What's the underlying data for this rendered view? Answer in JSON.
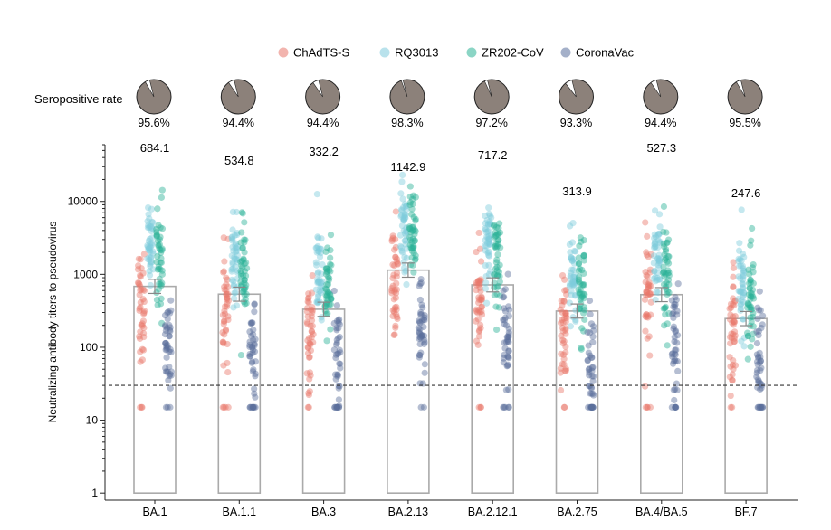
{
  "chart_data": {
    "type": "scatter",
    "subtype": "bar-with-jittered-points",
    "ylabel": "Neutralizing antibody titers to pseudovirus",
    "yscale": "log",
    "ylim": [
      0.8,
      60000
    ],
    "yticks": [
      1,
      10,
      100,
      1000,
      10000
    ],
    "ytick_labels": [
      "1",
      "10",
      "100",
      "1000",
      "10000"
    ],
    "threshold": 30,
    "legend_position": "top-center",
    "categories": [
      "BA.1",
      "BA.1.1",
      "BA.3",
      "BA.2.13",
      "BA.2.12.1",
      "BA.2.75",
      "BA.4/BA.5",
      "BF.7"
    ],
    "gmt_values": [
      684.1,
      534.8,
      332.2,
      1142.9,
      717.2,
      313.9,
      527.3,
      247.6
    ],
    "gmt_labels": [
      "684.1",
      "534.8",
      "332.2",
      "1142.9",
      "717.2",
      "313.9",
      "527.3",
      "247.6"
    ],
    "seropositive_label": "Seropositive rate",
    "seropositive_rates": [
      95.6,
      94.4,
      94.4,
      98.3,
      97.2,
      93.3,
      94.4,
      95.5
    ],
    "seropositive_labels": [
      "95.6%",
      "94.4%",
      "94.4%",
      "98.3%",
      "97.2%",
      "93.3%",
      "94.4%",
      "95.5%"
    ],
    "series": [
      {
        "name": "ChAdTS-S",
        "color": "#e8776b",
        "gmt": [
          420,
          380,
          170,
          900,
          520,
          180,
          460,
          160
        ],
        "spread": [
          0.4,
          0.4,
          0.42,
          0.38,
          0.4,
          0.38,
          0.4,
          0.4
        ]
      },
      {
        "name": "RQ3013",
        "color": "#7fcbdc",
        "gmt": [
          2600,
          2100,
          900,
          3600,
          2500,
          900,
          2000,
          700
        ],
        "spread": [
          0.32,
          0.32,
          0.35,
          0.3,
          0.32,
          0.35,
          0.32,
          0.32
        ]
      },
      {
        "name": "ZR202-CoV",
        "color": "#2bb296",
        "gmt": [
          1600,
          1300,
          600,
          2700,
          1600,
          700,
          1100,
          450
        ],
        "spread": [
          0.36,
          0.36,
          0.36,
          0.32,
          0.34,
          0.36,
          0.36,
          0.36
        ]
      },
      {
        "name": "CoronaVac",
        "color": "#5a6f9c",
        "gmt": [
          120,
          95,
          70,
          180,
          130,
          60,
          120,
          75
        ],
        "spread": [
          0.38,
          0.38,
          0.38,
          0.36,
          0.38,
          0.4,
          0.38,
          0.38
        ]
      }
    ],
    "pie_colors": {
      "positive": "#8c817a",
      "negative": "#ffffff"
    },
    "bar_edge_color": "#aaaaaa",
    "threshold_color": "#333333"
  }
}
